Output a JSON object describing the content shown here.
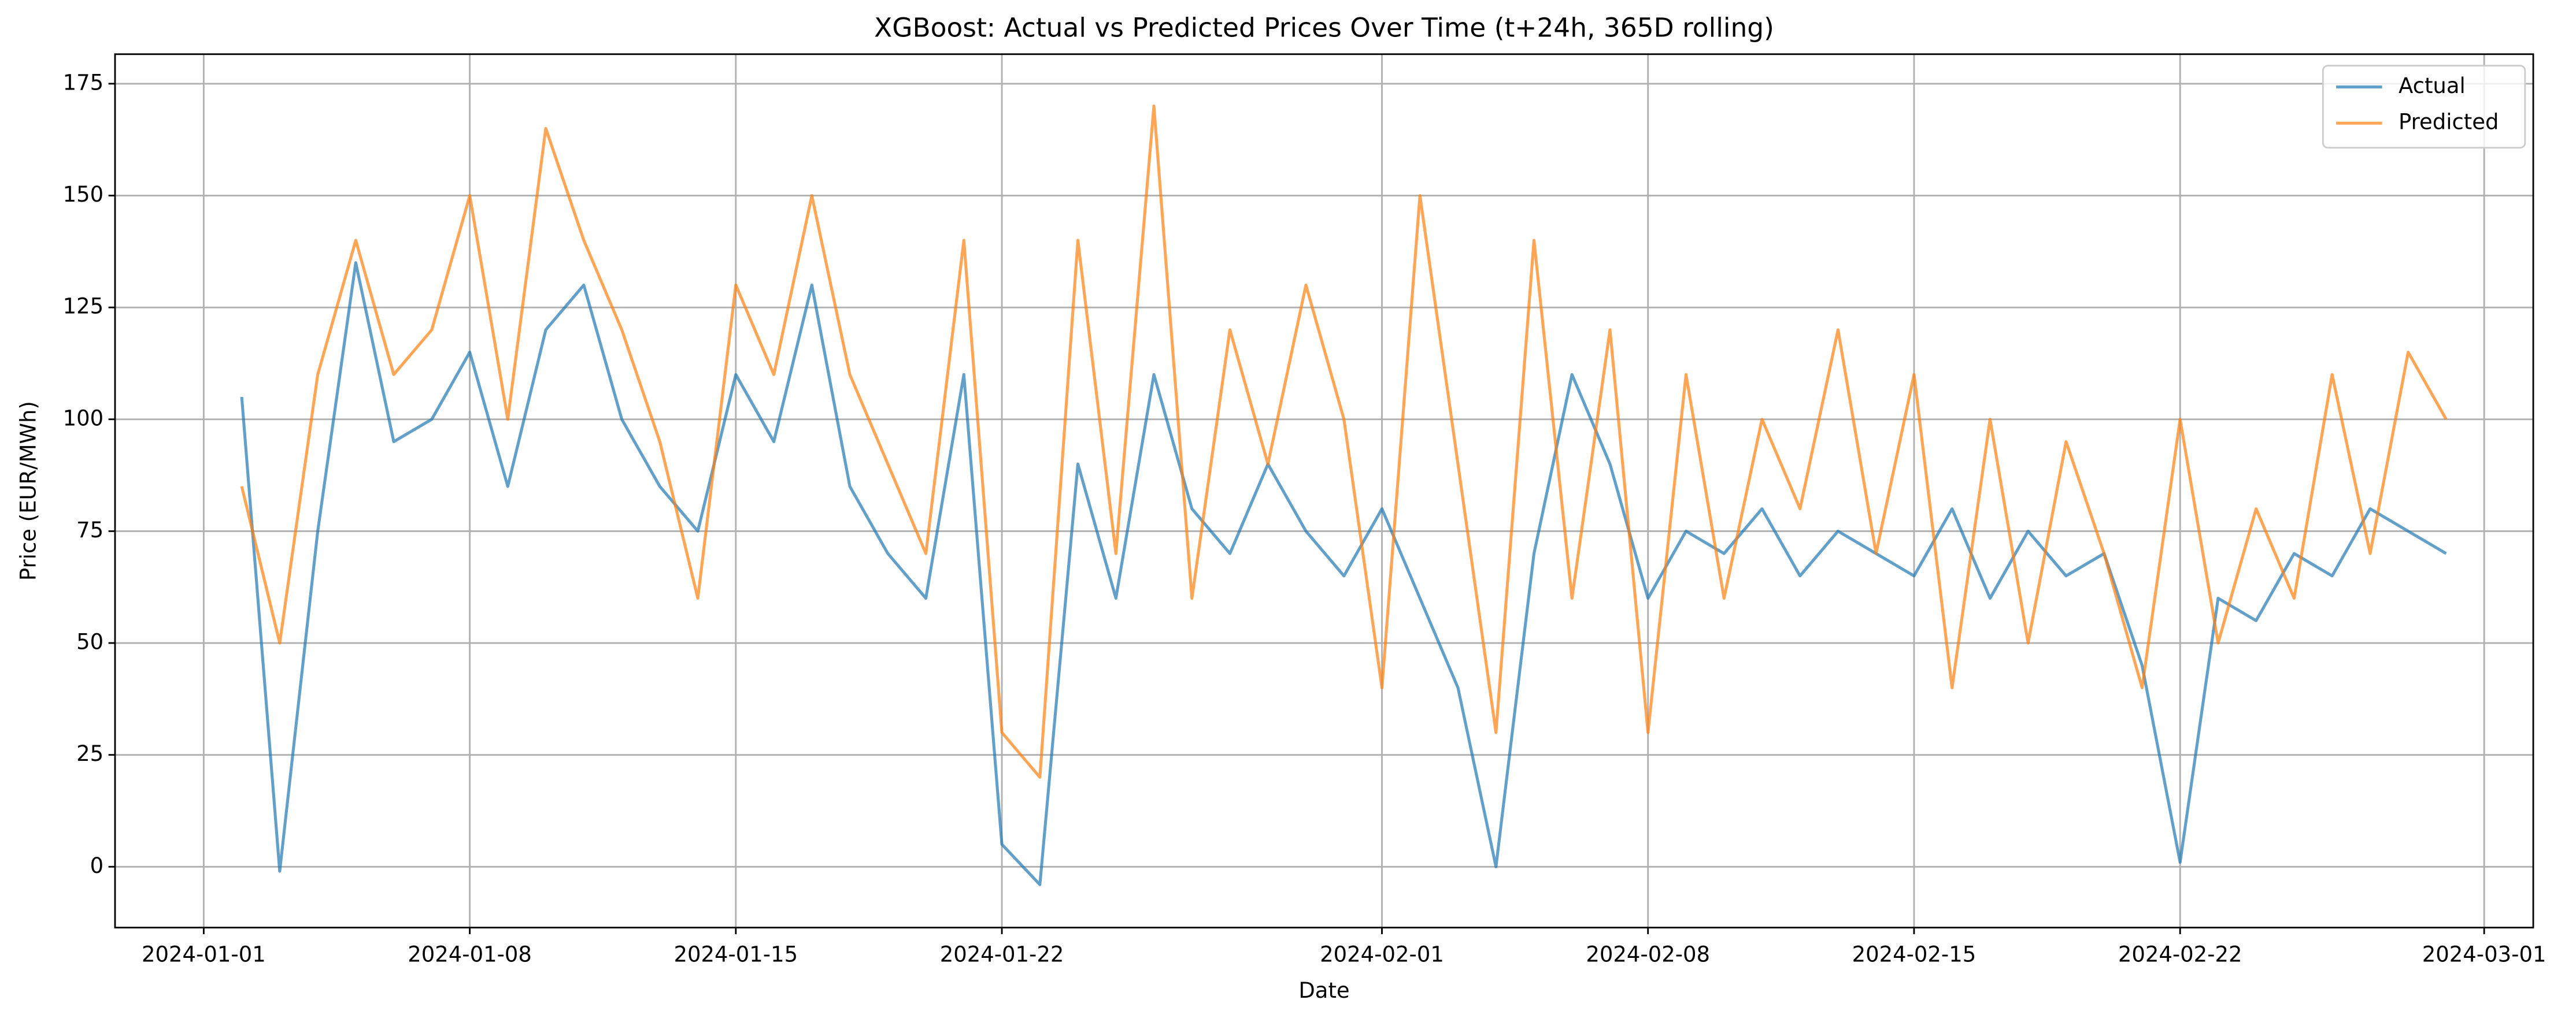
{
  "chart_data": {
    "type": "line",
    "title": "XGBoost: Actual vs Predicted Prices Over Time (t+24h, 365D rolling)",
    "x_label": "Date",
    "y_label": "Price (EUR/MWh)",
    "x": [
      "2024-01-02",
      "2024-01-03",
      "2024-01-04",
      "2024-01-05",
      "2024-01-06",
      "2024-01-07",
      "2024-01-08",
      "2024-01-09",
      "2024-01-10",
      "2024-01-11",
      "2024-01-12",
      "2024-01-13",
      "2024-01-14",
      "2024-01-15",
      "2024-01-16",
      "2024-01-17",
      "2024-01-18",
      "2024-01-19",
      "2024-01-20",
      "2024-01-21",
      "2024-01-22",
      "2024-01-23",
      "2024-01-24",
      "2024-01-25",
      "2024-01-26",
      "2024-01-27",
      "2024-01-28",
      "2024-01-29",
      "2024-01-30",
      "2024-01-31",
      "2024-02-01",
      "2024-02-02",
      "2024-02-03",
      "2024-02-04",
      "2024-02-05",
      "2024-02-06",
      "2024-02-07",
      "2024-02-08",
      "2024-02-09",
      "2024-02-10",
      "2024-02-11",
      "2024-02-12",
      "2024-02-13",
      "2024-02-14",
      "2024-02-15",
      "2024-02-16",
      "2024-02-17",
      "2024-02-18",
      "2024-02-19",
      "2024-02-20",
      "2024-02-21",
      "2024-02-22",
      "2024-02-23",
      "2024-02-24",
      "2024-02-25",
      "2024-02-26",
      "2024-02-27",
      "2024-02-28",
      "2024-02-29"
    ],
    "series": [
      {
        "name": "Actual",
        "color": "#1f77b4",
        "values": [
          105,
          -1,
          75,
          135,
          95,
          100,
          115,
          85,
          120,
          130,
          100,
          85,
          75,
          110,
          95,
          130,
          85,
          70,
          60,
          110,
          5,
          -4,
          90,
          60,
          110,
          80,
          70,
          90,
          75,
          65,
          80,
          60,
          40,
          0,
          70,
          110,
          90,
          60,
          75,
          70,
          80,
          65,
          75,
          70,
          65,
          80,
          60,
          75,
          65,
          70,
          45,
          1,
          60,
          55,
          70,
          65,
          80,
          75,
          70
        ]
      },
      {
        "name": "Predicted",
        "color": "#ff7f0e",
        "values": [
          85,
          50,
          110,
          140,
          110,
          120,
          150,
          100,
          165,
          140,
          120,
          95,
          60,
          130,
          110,
          150,
          110,
          90,
          70,
          140,
          30,
          20,
          140,
          70,
          170,
          60,
          120,
          90,
          130,
          100,
          40,
          150,
          90,
          30,
          140,
          60,
          120,
          30,
          110,
          60,
          100,
          80,
          120,
          70,
          110,
          40,
          100,
          50,
          95,
          70,
          40,
          100,
          50,
          80,
          60,
          110,
          70,
          115,
          100
        ]
      }
    ],
    "xlim": [
      "2023-12-29T16:00",
      "2024-03-02T07:00"
    ],
    "xticks": [
      "2024-01-01",
      "2024-01-08",
      "2024-01-15",
      "2024-01-22",
      "2024-02-01",
      "2024-02-08",
      "2024-02-15",
      "2024-02-22",
      "2024-03-01"
    ],
    "ylim": [
      -13.6,
      181.6
    ],
    "yticks": [
      0,
      25,
      50,
      75,
      100,
      125,
      150,
      175
    ],
    "grid": true,
    "legend": "upper right"
  }
}
